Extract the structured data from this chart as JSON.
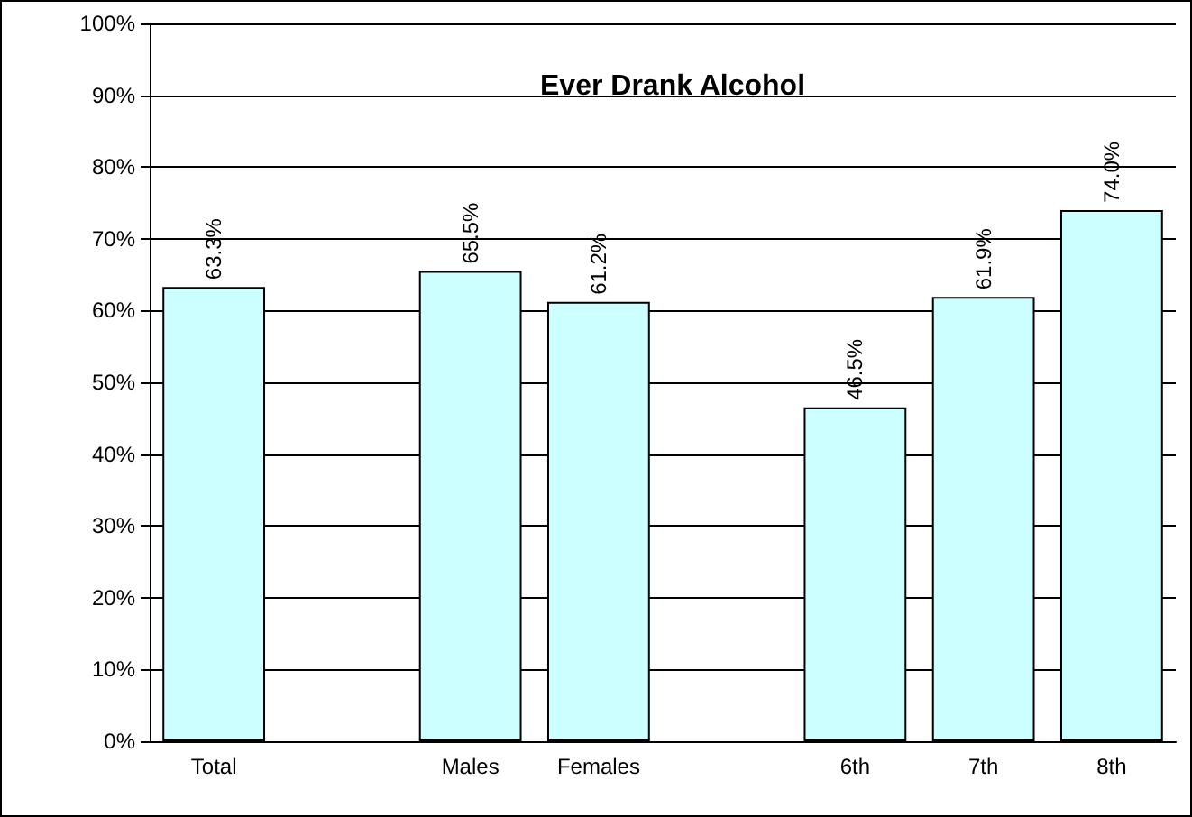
{
  "chart_data": {
    "type": "bar",
    "title": "Ever Drank Alcohol",
    "categories": [
      "Total",
      null,
      "Males",
      "Females",
      null,
      "6th",
      "7th",
      "8th"
    ],
    "values": [
      63.3,
      null,
      65.5,
      61.2,
      null,
      46.5,
      61.9,
      74.0
    ],
    "value_labels": [
      "63.3%",
      null,
      "65.5%",
      "61.2%",
      null,
      "46.5%",
      "61.9%",
      "74.0%"
    ],
    "color": "#ccffff",
    "ylim": [
      0,
      100
    ],
    "yticks": [
      {
        "value": 0,
        "label": "0%"
      },
      {
        "value": 10,
        "label": "10%"
      },
      {
        "value": 20,
        "label": "20%"
      },
      {
        "value": 30,
        "label": "30%"
      },
      {
        "value": 40,
        "label": "40%"
      },
      {
        "value": 50,
        "label": "50%"
      },
      {
        "value": 60,
        "label": "60%"
      },
      {
        "value": 70,
        "label": "70%"
      },
      {
        "value": 80,
        "label": "80%"
      },
      {
        "value": 90,
        "label": "90%"
      },
      {
        "value": 100,
        "label": "100%"
      }
    ],
    "grid": "y"
  }
}
